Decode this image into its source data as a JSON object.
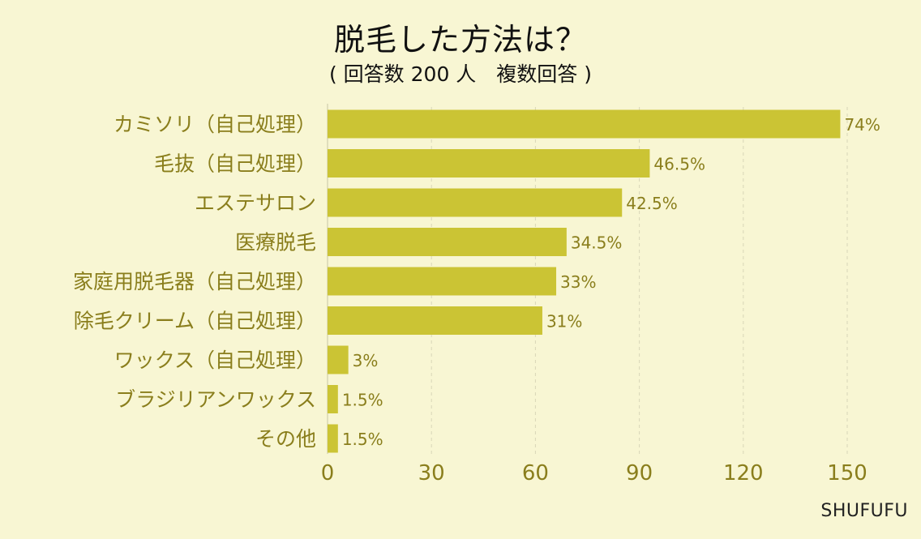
{
  "chart_data": {
    "type": "bar",
    "orientation": "horizontal",
    "title": "脱毛した方法は？",
    "subtitle": "( 回答数 200 人　複数回答 )",
    "categories": [
      "カミソリ（自己処理）",
      "毛抜（自己処理）",
      "エステサロン",
      "医療脱毛",
      "家庭用脱毛器（自己処理）",
      "除毛クリーム（自己処理）",
      "ワックス（自己処理）",
      "ブラジリアンワックス",
      "その他"
    ],
    "values": [
      148,
      93,
      85,
      69,
      66,
      62,
      6,
      3,
      3
    ],
    "value_labels": [
      "74%",
      "46.5%",
      "42.5%",
      "34.5%",
      "33%",
      "31%",
      "3%",
      "1.5%",
      "1.5%"
    ],
    "xlim": [
      0,
      150
    ],
    "xticks": [
      0,
      30,
      60,
      90,
      120,
      150
    ],
    "grid": true,
    "bar_color": "#cbc434",
    "label_color": "#8a7e1c"
  },
  "footer": {
    "brand": "SHUFUFU"
  }
}
